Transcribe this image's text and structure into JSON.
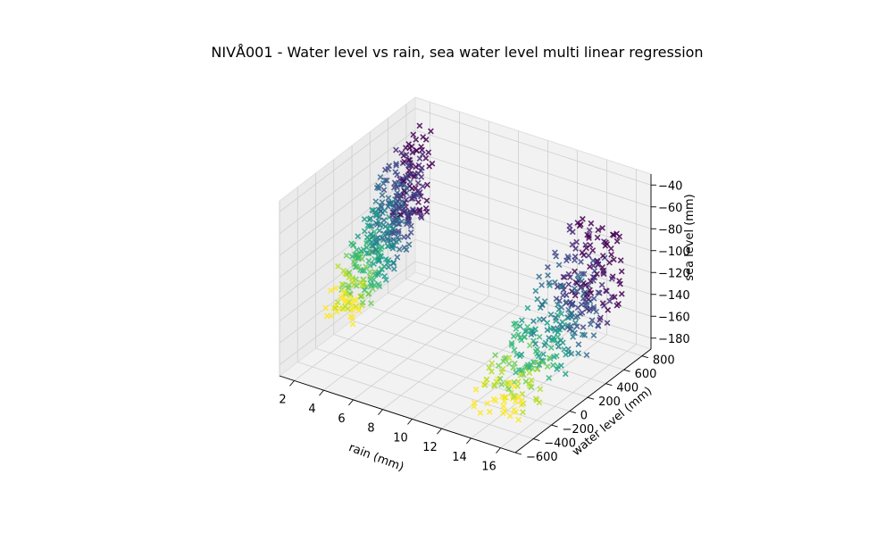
{
  "chart_data": {
    "type": "scatter",
    "projection": "3d",
    "title": "NIVÅ001 - Water level vs rain, sea water level  multi linear regression",
    "xlabel": "rain (mm)",
    "ylabel": "water level (mm)",
    "zlabel": "sea level (mm)",
    "xlim": [
      1,
      17
    ],
    "ylim": [
      -600,
      900
    ],
    "zlim": [
      -190,
      -30
    ],
    "xticks": [
      "2",
      "4",
      "6",
      "8",
      "10",
      "12",
      "14",
      "16"
    ],
    "yticks": [
      "−600",
      "−400",
      "−200",
      "0",
      "200",
      "400",
      "600",
      "800"
    ],
    "zticks": [
      "−180",
      "−160",
      "−140",
      "−120",
      "−100",
      "−80",
      "−60",
      "−40"
    ],
    "marker": "x",
    "colormap": "viridis",
    "grid": true,
    "clusters": [
      {
        "rain_range": [
          1,
          3
        ],
        "water_level_range": [
          -100,
          800
        ],
        "sea_level_range": [
          -180,
          -45
        ]
      },
      {
        "rain_range": [
          13,
          16.5
        ],
        "water_level_range": [
          -450,
          750
        ],
        "sea_level_range": [
          -185,
          -75
        ]
      }
    ]
  }
}
